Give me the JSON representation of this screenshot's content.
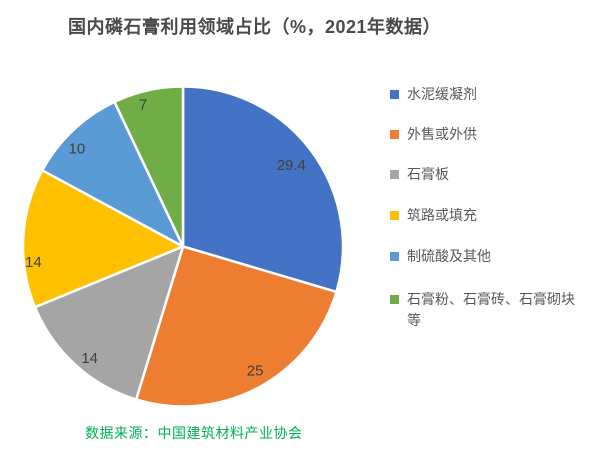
{
  "chart_data": {
    "type": "pie",
    "title": "国内磷石膏利用领域占比（%，2021年数据）",
    "unit": "%",
    "categories": [
      "水泥缓凝剂",
      "外售或外供",
      "石膏板",
      "筑路或填充",
      "制硫酸及其他",
      "石膏粉、石膏砖、石膏砌块等"
    ],
    "values": [
      29.4,
      25,
      14,
      14,
      10,
      7
    ],
    "data_labels": [
      "29.4",
      "25",
      "14",
      "14",
      "10",
      "7"
    ],
    "colors": [
      "#4472C4",
      "#ED7D31",
      "#A5A5A5",
      "#FFC000",
      "#5B9BD5",
      "#70AD47"
    ],
    "start_angle_deg": 0,
    "direction": "clockwise",
    "legend_position": "right",
    "slice_border_color": "#FFFFFF",
    "data_label_color": "#404040",
    "label_layout": [
      {
        "angle_frac": 0.5,
        "radius_frac": 0.845
      },
      {
        "angle_frac": 0.48,
        "radius_frac": 0.9
      },
      {
        "angle_frac": 0.45,
        "radius_frac": 0.91
      },
      {
        "angle_frac": 0.32,
        "radius_frac": 0.94
      },
      {
        "angle_frac": 0.39,
        "radius_frac": 0.9
      },
      {
        "angle_frac": 0.38,
        "radius_frac": 0.92
      }
    ]
  },
  "header": {
    "title_color": "#4a4a4a"
  },
  "footer": {
    "source_text": "数据来源：中国建筑材料产业协会",
    "source_color": "#00B050"
  }
}
